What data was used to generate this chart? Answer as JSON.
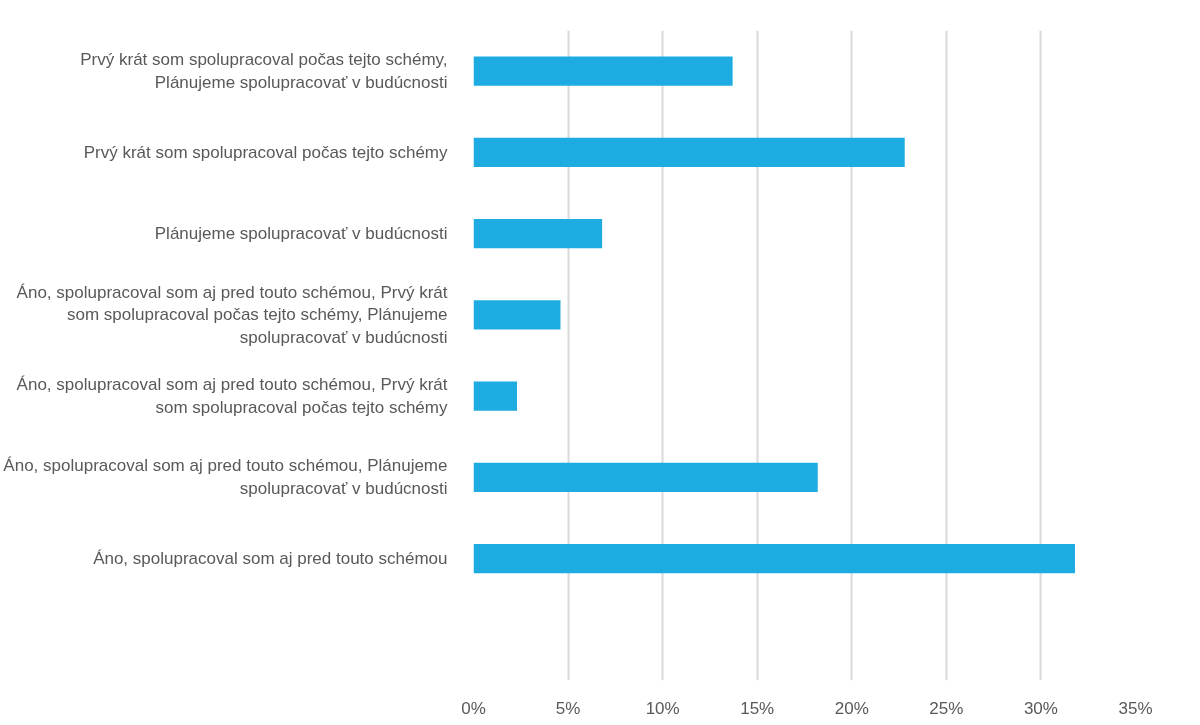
{
  "chart_data": {
    "type": "bar",
    "orientation": "horizontal",
    "categories": [
      "Prvý krát som spolupracoval počas tejto schémy, Plánujeme spolupracovať v budúcnosti",
      "Prvý krát som spolupracoval počas tejto schémy",
      "Plánujeme spolupracovať v budúcnosti",
      "Áno, spolupracoval som aj pred touto schémou, Prvý krát som spolupracoval počas tejto schémy, Plánujeme spolupracovať v budúcnosti",
      "Áno, spolupracoval som aj pred touto schémou, Prvý krát som spolupracoval počas tejto schémy",
      "Áno, spolupracoval som aj pred touto schémou, Plánujeme spolupracovať v budúcnosti",
      "Áno, spolupracoval som aj pred touto schémou",
      null
    ],
    "values": [
      13.7,
      22.8,
      6.8,
      4.6,
      2.3,
      18.2,
      31.8,
      null
    ],
    "color": "#1eabe2",
    "xlim": [
      0,
      35
    ],
    "xticks": [
      {
        "value": 0,
        "label": "0%"
      },
      {
        "value": 5,
        "label": "5%"
      },
      {
        "value": 10,
        "label": "10%"
      },
      {
        "value": 15,
        "label": "15%"
      },
      {
        "value": 20,
        "label": "20%"
      },
      {
        "value": 25,
        "label": "25%"
      },
      {
        "value": 30,
        "label": "30%"
      },
      {
        "value": 35,
        "label": "35%"
      }
    ],
    "grid": "x"
  }
}
